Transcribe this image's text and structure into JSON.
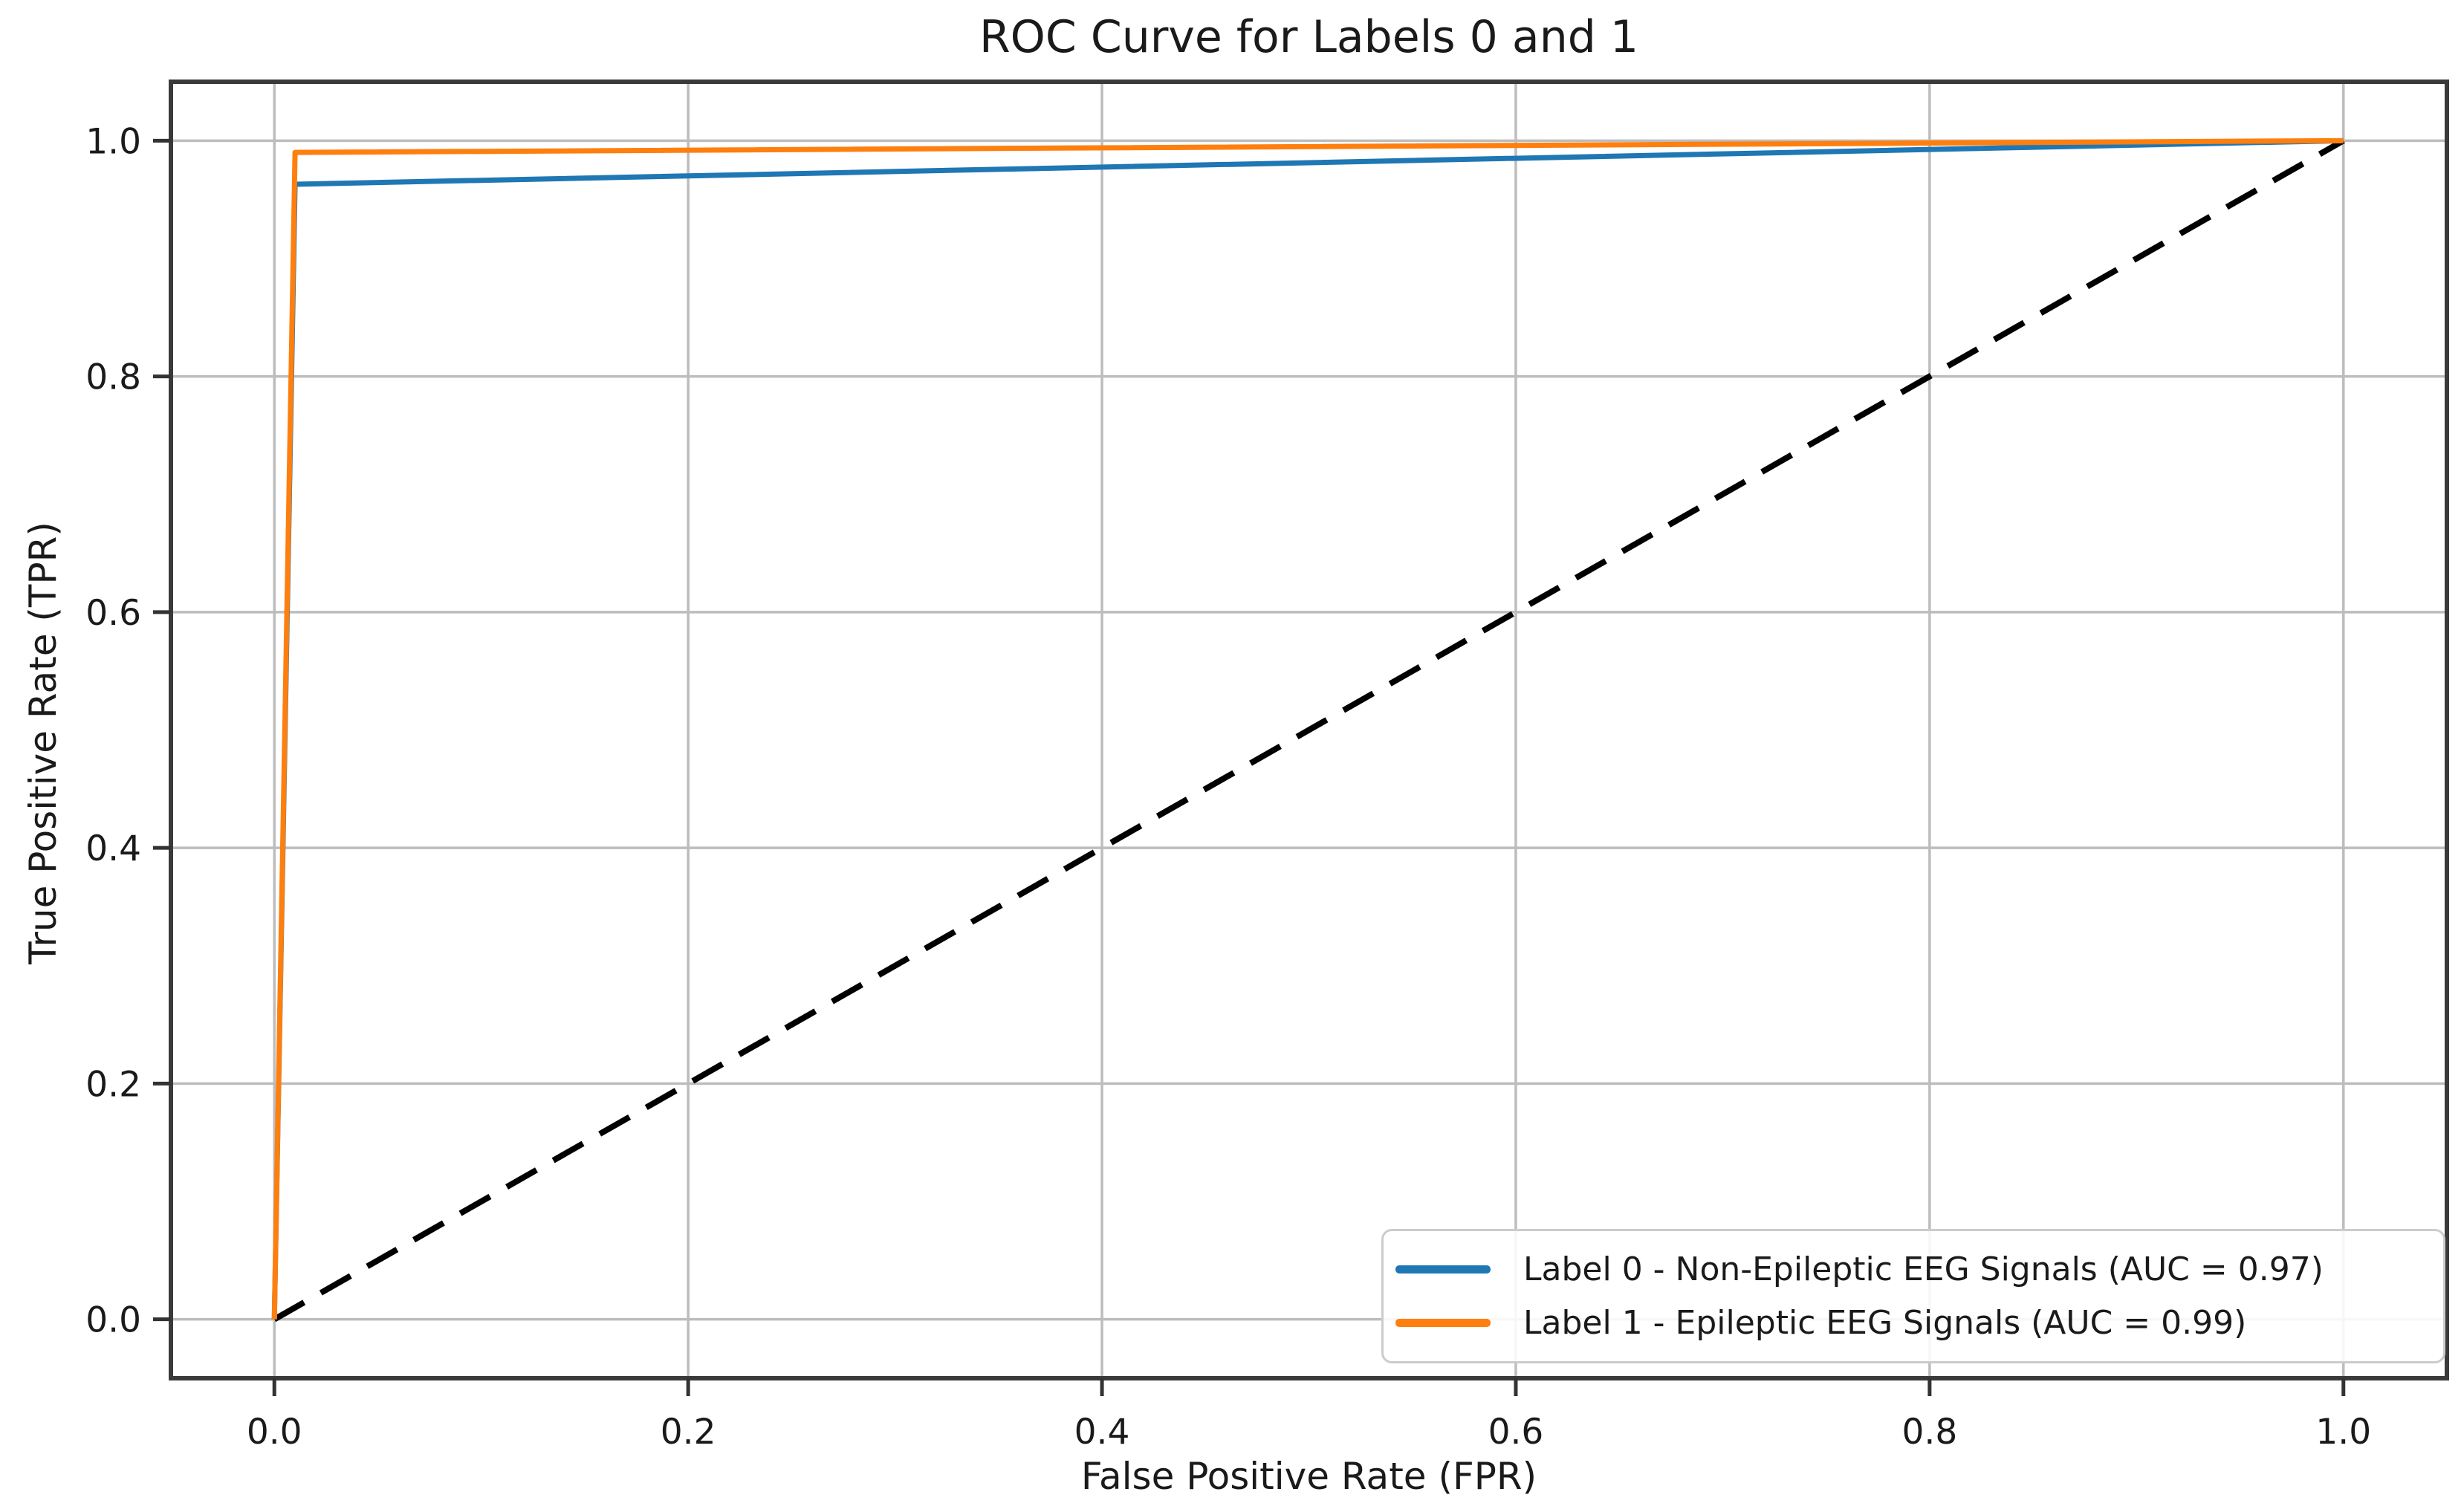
{
  "chart_data": {
    "type": "line",
    "title": "ROC Curve for Labels 0 and 1",
    "xlabel": "False Positive Rate (FPR)",
    "ylabel": "True Positive Rate (TPR)",
    "xlim": [
      0.0,
      1.0
    ],
    "ylim": [
      0.0,
      1.0
    ],
    "axis_margin": 0.05,
    "xticks": [
      0.0,
      0.2,
      0.4,
      0.6,
      0.8,
      1.0
    ],
    "yticks": [
      0.0,
      0.2,
      0.4,
      0.6,
      0.8,
      1.0
    ],
    "grid": true,
    "legend_position": "lower right",
    "series": [
      {
        "label": "Label 0 - Non-Epileptic EEG Signals (AUC = 0.97)",
        "auc": 0.97,
        "color": "#1f77b4",
        "points": [
          [
            0.0,
            0.0
          ],
          [
            0.01,
            0.963
          ],
          [
            1.0,
            1.0
          ]
        ]
      },
      {
        "label": "Label 1 - Epileptic EEG Signals (AUC = 0.99)",
        "auc": 0.99,
        "color": "#ff7f0e",
        "points": [
          [
            0.0,
            0.0
          ],
          [
            0.01,
            0.99
          ],
          [
            1.0,
            1.0
          ]
        ]
      }
    ],
    "reference_line": {
      "label": "chance-diagonal",
      "color": "#000000",
      "dashed": true,
      "points": [
        [
          0.0,
          0.0
        ],
        [
          1.0,
          1.0
        ]
      ]
    },
    "style_colors": {
      "grid": "#bdbdbd",
      "spine": "#3a3a3a",
      "tick": "#333333",
      "text": "#1a1a1a",
      "legend_border": "#cccccc"
    }
  }
}
